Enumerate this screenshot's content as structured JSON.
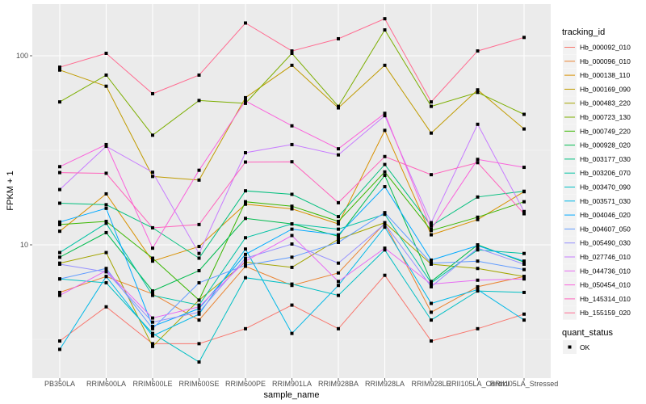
{
  "chart_data": {
    "type": "line",
    "title": "",
    "xlabel": "sample_name",
    "ylabel": "FPKM + 1",
    "y_scale": "log10",
    "ylim": [
      2.3,
      200
    ],
    "y_ticks": [
      10,
      100
    ],
    "y_tick_labels": [
      "10",
      "100"
    ],
    "grid": true,
    "legend_position": "right",
    "categories": [
      "PB350LA",
      "RRIM600LA",
      "RRIM600LE",
      "RRIM600SE",
      "RRIM600PE",
      "RRIM901LA",
      "RRIM928BA",
      "RRIM928LA",
      "RRIM928LE",
      "RRII105LA_Control",
      "RRII105LA_Stressed"
    ],
    "legend_title": "tracking_id",
    "shape_legend_title": "quant_status",
    "shape_legend_items": [
      "OK"
    ],
    "series": [
      {
        "name": "Hb_000092_010",
        "color": "#F8766D",
        "values": [
          3.1,
          4.7,
          3.0,
          3.0,
          3.6,
          4.8,
          3.6,
          6.9,
          3.1,
          3.6,
          4.3
        ]
      },
      {
        "name": "Hb_000096_010",
        "color": "#EA8331",
        "values": [
          5.6,
          6.8,
          5.5,
          4.0,
          7.7,
          6.1,
          7.1,
          13.0,
          4.4,
          6.0,
          6.8
        ]
      },
      {
        "name": "Hb_000138_110",
        "color": "#D89000",
        "values": [
          11.8,
          18.6,
          8.2,
          9.8,
          16.4,
          15.5,
          12.9,
          40.3,
          11.3,
          13.6,
          19.1
        ]
      },
      {
        "name": "Hb_000169_090",
        "color": "#C09B00",
        "values": [
          84,
          69,
          23,
          22,
          60,
          89,
          53,
          89,
          39,
          66,
          41
        ]
      },
      {
        "name": "Hb_000483_220",
        "color": "#A3A500",
        "values": [
          8.0,
          9.1,
          2.9,
          5.1,
          8.1,
          7.6,
          10.7,
          13.1,
          7.9,
          7.5,
          6.8
        ]
      },
      {
        "name": "Hb_000723_130",
        "color": "#7CAE00",
        "values": [
          57,
          79,
          38,
          58,
          56,
          103,
          54,
          137,
          54,
          64,
          49
        ]
      },
      {
        "name": "Hb_000749_220",
        "color": "#39B600",
        "values": [
          12.8,
          13.3,
          8.5,
          5.1,
          16.9,
          16.0,
          13.3,
          24.3,
          11.9,
          14.0,
          16.9
        ]
      },
      {
        "name": "Hb_000928_020",
        "color": "#00BB4E",
        "values": [
          8.6,
          11.6,
          5.7,
          7.3,
          13.8,
          12.9,
          11.1,
          23.3,
          6.4,
          10.0,
          8.1
        ]
      },
      {
        "name": "Hb_003177_030",
        "color": "#00BF7D",
        "values": [
          16.6,
          16.3,
          12.3,
          8.5,
          19.3,
          18.5,
          14.1,
          26.6,
          12.6,
          17.9,
          19.2
        ]
      },
      {
        "name": "Hb_003206_070",
        "color": "#00C1A3",
        "values": [
          9.1,
          13.0,
          5.4,
          4.8,
          10.9,
          12.9,
          12.1,
          14.5,
          6.3,
          9.4,
          9.0
        ]
      },
      {
        "name": "Hb_003470_090",
        "color": "#00BFC4",
        "values": [
          6.6,
          6.3,
          3.4,
          2.4,
          6.7,
          6.2,
          5.4,
          9.4,
          4.0,
          5.7,
          5.6
        ]
      },
      {
        "name": "Hb_003571_030",
        "color": "#00B8E7",
        "values": [
          2.8,
          6.8,
          3.3,
          4.3,
          9.5,
          3.4,
          6.1,
          12.4,
          4.9,
          5.8,
          4.0
        ]
      },
      {
        "name": "Hb_004046_020",
        "color": "#00A9FF",
        "values": [
          13.2,
          15.6,
          3.7,
          4.6,
          8.9,
          12.1,
          11.3,
          20.3,
          8.3,
          9.9,
          8.2
        ]
      },
      {
        "name": "Hb_004607_050",
        "color": "#619CFF",
        "values": [
          6.6,
          7.5,
          3.6,
          6.3,
          7.8,
          8.6,
          10.3,
          14.8,
          8.0,
          8.2,
          7.4
        ]
      },
      {
        "name": "Hb_005490_030",
        "color": "#9590FF",
        "values": [
          7.9,
          7.2,
          3.9,
          4.4,
          8.5,
          10.1,
          8.0,
          12.9,
          6.0,
          9.6,
          7.9
        ]
      },
      {
        "name": "Hb_027746_010",
        "color": "#C77CFF",
        "values": [
          19.6,
          33.2,
          24.2,
          9.0,
          30.7,
          33.9,
          29.9,
          48.2,
          13.1,
          43.4,
          15.0
        ]
      },
      {
        "name": "Hb_044736_010",
        "color": "#E76BF3",
        "values": [
          5.4,
          7.3,
          4.1,
          4.7,
          8.2,
          11.2,
          6.4,
          9.6,
          6.2,
          6.5,
          6.6
        ]
      },
      {
        "name": "Hb_050454_010",
        "color": "#FA62DB",
        "values": [
          25.9,
          33.9,
          9.6,
          24.8,
          57.7,
          42.6,
          32.2,
          49.6,
          12.1,
          28.3,
          25.7
        ]
      },
      {
        "name": "Hb_145314_010",
        "color": "#FF62BC",
        "values": [
          24.1,
          23.9,
          12.3,
          12.8,
          27.4,
          27.5,
          16.7,
          29.3,
          23.5,
          27.2,
          14.6
        ]
      },
      {
        "name": "Hb_155159_020",
        "color": "#FF6C91",
        "values": [
          87,
          103,
          63,
          79,
          149,
          106,
          123,
          157,
          57,
          106,
          125
        ]
      }
    ]
  }
}
